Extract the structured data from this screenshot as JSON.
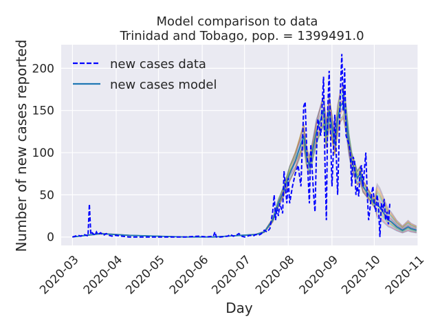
{
  "chart_data": {
    "type": "line",
    "title_line1": "Model comparison to data",
    "title_line2": "Trinidad and Tobago, pop. = 1399491.0",
    "xlabel": "Day",
    "ylabel": "Number of new cases reported",
    "x_tick_labels": [
      "2020-03",
      "2020-04",
      "2020-05",
      "2020-06",
      "2020-07",
      "2020-08",
      "2020-09",
      "2020-10",
      "2020-11"
    ],
    "x_range_days": [
      -8,
      245
    ],
    "y_ticks": [
      0,
      50,
      100,
      150,
      200
    ],
    "ylim": [
      -10,
      228
    ],
    "grid": true,
    "legend_position": "top-left",
    "legend": {
      "data_label": "new cases data",
      "model_label": "new cases model"
    },
    "colors": {
      "data": "#0000ff",
      "model": "#1f77b4",
      "background": "#eaeaf2",
      "ensemble": [
        "#1f77b4",
        "#ff7f0e",
        "#2ca02c",
        "#d62728",
        "#9467bd",
        "#8c564b",
        "#e377c2",
        "#7f7f7f",
        "#bcbd22",
        "#17becf"
      ]
    },
    "series": [
      {
        "name": "new cases data",
        "style": "dashed",
        "points": [
          [
            0,
            0
          ],
          [
            2,
            1
          ],
          [
            4,
            2
          ],
          [
            6,
            1
          ],
          [
            8,
            3
          ],
          [
            10,
            2
          ],
          [
            11,
            1
          ],
          [
            12,
            39
          ],
          [
            13,
            3
          ],
          [
            14,
            5
          ],
          [
            16,
            2
          ],
          [
            17,
            6
          ],
          [
            18,
            3
          ],
          [
            20,
            5
          ],
          [
            22,
            2
          ],
          [
            24,
            4
          ],
          [
            26,
            2
          ],
          [
            28,
            1
          ],
          [
            30,
            2
          ],
          [
            35,
            1
          ],
          [
            40,
            0
          ],
          [
            50,
            0
          ],
          [
            60,
            0
          ],
          [
            70,
            0
          ],
          [
            80,
            0
          ],
          [
            90,
            1
          ],
          [
            95,
            0
          ],
          [
            100,
            1
          ],
          [
            101,
            6
          ],
          [
            102,
            0
          ],
          [
            105,
            0
          ],
          [
            110,
            1
          ],
          [
            112,
            3
          ],
          [
            114,
            1
          ],
          [
            116,
            2
          ],
          [
            118,
            4
          ],
          [
            120,
            1
          ],
          [
            122,
            0
          ],
          [
            126,
            2
          ],
          [
            128,
            1
          ],
          [
            130,
            3
          ],
          [
            132,
            2
          ],
          [
            134,
            4
          ],
          [
            136,
            8
          ],
          [
            138,
            6
          ],
          [
            140,
            10
          ],
          [
            142,
            30
          ],
          [
            143,
            50
          ],
          [
            144,
            20
          ],
          [
            145,
            35
          ],
          [
            146,
            25
          ],
          [
            147,
            40
          ],
          [
            149,
            28
          ],
          [
            150,
            78
          ],
          [
            151,
            60
          ],
          [
            152,
            40
          ],
          [
            153,
            70
          ],
          [
            154,
            40
          ],
          [
            156,
            60
          ],
          [
            158,
            75
          ],
          [
            160,
            85
          ],
          [
            162,
            60
          ],
          [
            164,
            155
          ],
          [
            165,
            160
          ],
          [
            166,
            110
          ],
          [
            168,
            40
          ],
          [
            169,
            110
          ],
          [
            170,
            80
          ],
          [
            171,
            50
          ],
          [
            172,
            30
          ],
          [
            173,
            100
          ],
          [
            174,
            140
          ],
          [
            176,
            120
          ],
          [
            178,
            190
          ],
          [
            179,
            90
          ],
          [
            180,
            20
          ],
          [
            181,
            150
          ],
          [
            182,
            197
          ],
          [
            183,
            120
          ],
          [
            184,
            60
          ],
          [
            186,
            145
          ],
          [
            187,
            100
          ],
          [
            188,
            50
          ],
          [
            190,
            175
          ],
          [
            191,
            217
          ],
          [
            192,
            150
          ],
          [
            193,
            200
          ],
          [
            194,
            120
          ],
          [
            196,
            110
          ],
          [
            197,
            100
          ],
          [
            198,
            60
          ],
          [
            199,
            95
          ],
          [
            200,
            90
          ],
          [
            201,
            50
          ],
          [
            202,
            60
          ],
          [
            203,
            48
          ],
          [
            204,
            80
          ],
          [
            205,
            85
          ],
          [
            206,
            60
          ],
          [
            208,
            100
          ],
          [
            209,
            50
          ],
          [
            210,
            20
          ],
          [
            211,
            35
          ],
          [
            212,
            50
          ],
          [
            213,
            60
          ],
          [
            214,
            40
          ],
          [
            215,
            30
          ],
          [
            216,
            50
          ],
          [
            217,
            35
          ],
          [
            218,
            0
          ],
          [
            219,
            40
          ],
          [
            220,
            30
          ],
          [
            221,
            45
          ],
          [
            222,
            20
          ],
          [
            223,
            30
          ],
          [
            224,
            15
          ],
          [
            225,
            40
          ]
        ]
      },
      {
        "name": "new cases model",
        "style": "solid",
        "points": [
          [
            0,
            0
          ],
          [
            10,
            2
          ],
          [
            20,
            4
          ],
          [
            30,
            3
          ],
          [
            40,
            2
          ],
          [
            60,
            1
          ],
          [
            80,
            0
          ],
          [
            100,
            0
          ],
          [
            110,
            1
          ],
          [
            120,
            2
          ],
          [
            130,
            3
          ],
          [
            136,
            6
          ],
          [
            142,
            20
          ],
          [
            146,
            40
          ],
          [
            150,
            55
          ],
          [
            154,
            75
          ],
          [
            158,
            90
          ],
          [
            162,
            110
          ],
          [
            164,
            120
          ],
          [
            166,
            95
          ],
          [
            168,
            85
          ],
          [
            170,
            100
          ],
          [
            173,
            125
          ],
          [
            176,
            140
          ],
          [
            178,
            150
          ],
          [
            180,
            120
          ],
          [
            182,
            150
          ],
          [
            184,
            130
          ],
          [
            186,
            110
          ],
          [
            188,
            140
          ],
          [
            190,
            155
          ],
          [
            192,
            160
          ],
          [
            194,
            140
          ],
          [
            196,
            110
          ],
          [
            198,
            90
          ],
          [
            200,
            80
          ],
          [
            202,
            70
          ],
          [
            204,
            75
          ],
          [
            206,
            60
          ],
          [
            208,
            55
          ],
          [
            210,
            50
          ],
          [
            212,
            45
          ],
          [
            214,
            40
          ],
          [
            216,
            38
          ],
          [
            218,
            35
          ],
          [
            220,
            30
          ],
          [
            222,
            25
          ],
          [
            224,
            20
          ],
          [
            226,
            18
          ],
          [
            228,
            15
          ],
          [
            230,
            12
          ],
          [
            232,
            10
          ],
          [
            234,
            8
          ],
          [
            236,
            10
          ],
          [
            238,
            12
          ],
          [
            240,
            10
          ],
          [
            242,
            9
          ],
          [
            244,
            8
          ]
        ]
      }
    ]
  }
}
